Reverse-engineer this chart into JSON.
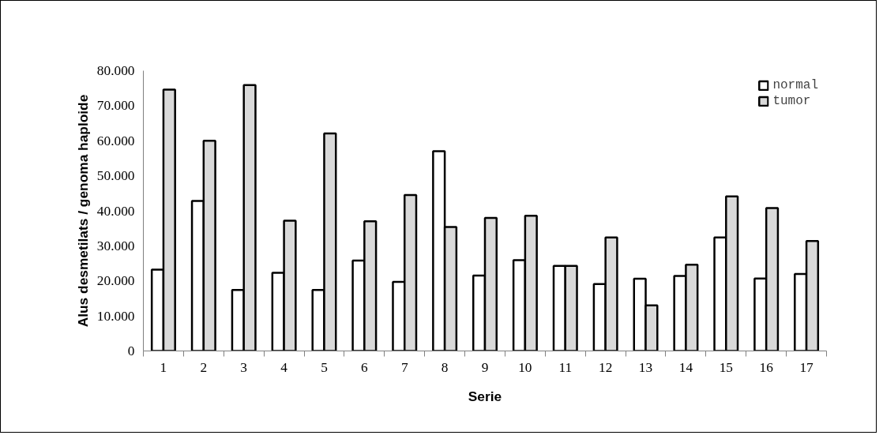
{
  "chart_data": {
    "type": "bar",
    "xlabel": "Serie",
    "ylabel": "Alus desmetilats / genoma haploide",
    "categories": [
      "1",
      "2",
      "3",
      "4",
      "5",
      "6",
      "7",
      "8",
      "9",
      "10",
      "11",
      "12",
      "13",
      "14",
      "15",
      "16",
      "17"
    ],
    "series": [
      {
        "name": "normal",
        "color": "#ffffff",
        "values": [
          23200,
          42800,
          17400,
          22300,
          17400,
          25800,
          19700,
          57000,
          21500,
          25900,
          24300,
          19100,
          20600,
          21400,
          32400,
          20700,
          22000
        ]
      },
      {
        "name": "tumor",
        "color": "#d9d9d9",
        "values": [
          74600,
          60000,
          75900,
          37200,
          62100,
          37000,
          44500,
          35400,
          38000,
          38600,
          24300,
          32400,
          13000,
          24600,
          44100,
          40800,
          31400
        ]
      }
    ],
    "ylim": [
      0,
      80000
    ],
    "yticks": [
      0,
      {
        "value": 10000,
        "label": "10.000"
      },
      {
        "value": 20000,
        "label": "20.000"
      },
      {
        "value": 30000,
        "label": "30.000"
      },
      {
        "value": 40000,
        "label": "40.000"
      },
      {
        "value": 50000,
        "label": "50.000"
      },
      {
        "value": 60000,
        "label": "60.000"
      },
      {
        "value": 70000,
        "label": "70.000"
      },
      {
        "value": 80000,
        "label": "80.000"
      }
    ],
    "legend": "top right",
    "grid": false
  }
}
